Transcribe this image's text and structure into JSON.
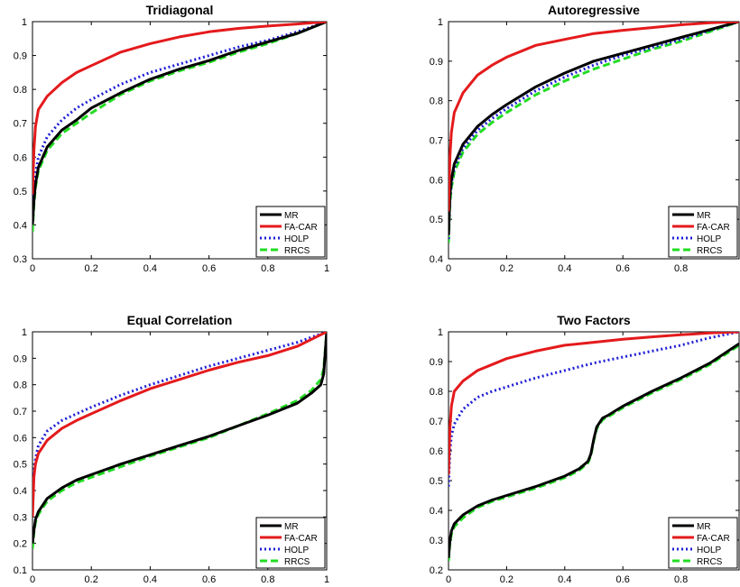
{
  "chart_data": [
    {
      "type": "line",
      "title": "Tridiagonal",
      "xlim": [
        0,
        1
      ],
      "ylim": [
        0.3,
        1
      ],
      "xticks": [
        "0",
        "0.2",
        "0.4",
        "0.6",
        "0.8",
        "1"
      ],
      "yticks": [
        "0.3",
        "0.4",
        "0.5",
        "0.6",
        "0.7",
        "0.8",
        "0.9",
        "1"
      ],
      "legend": "bottom-right",
      "series": [
        {
          "name": "MR",
          "color": "#000000",
          "style": "solid",
          "x": [
            0,
            0.005,
            0.01,
            0.02,
            0.05,
            0.1,
            0.15,
            0.2,
            0.3,
            0.4,
            0.5,
            0.6,
            0.7,
            0.8,
            0.9,
            1.0
          ],
          "y": [
            0.4,
            0.47,
            0.52,
            0.57,
            0.63,
            0.68,
            0.71,
            0.745,
            0.79,
            0.83,
            0.86,
            0.885,
            0.915,
            0.94,
            0.965,
            1.0
          ]
        },
        {
          "name": "FA-CAR",
          "color": "#e41a1c",
          "style": "solid",
          "x": [
            0,
            0.005,
            0.01,
            0.02,
            0.05,
            0.1,
            0.15,
            0.2,
            0.3,
            0.4,
            0.5,
            0.6,
            0.7,
            0.8,
            0.9,
            1.0
          ],
          "y": [
            0.49,
            0.62,
            0.69,
            0.74,
            0.78,
            0.82,
            0.85,
            0.87,
            0.91,
            0.935,
            0.955,
            0.97,
            0.98,
            0.987,
            0.993,
            1.0
          ]
        },
        {
          "name": "HOLP",
          "color": "#1f1fd6",
          "style": "dotted",
          "x": [
            0,
            0.005,
            0.01,
            0.02,
            0.05,
            0.1,
            0.15,
            0.2,
            0.3,
            0.4,
            0.5,
            0.6,
            0.7,
            0.8,
            0.9,
            1.0
          ],
          "y": [
            0.42,
            0.5,
            0.55,
            0.6,
            0.66,
            0.71,
            0.745,
            0.77,
            0.815,
            0.85,
            0.875,
            0.9,
            0.925,
            0.945,
            0.97,
            1.0
          ]
        },
        {
          "name": "RRCS",
          "color": "#22dd22",
          "style": "dashed",
          "x": [
            0,
            0.005,
            0.01,
            0.02,
            0.05,
            0.1,
            0.15,
            0.2,
            0.3,
            0.4,
            0.5,
            0.6,
            0.7,
            0.8,
            0.9,
            1.0
          ],
          "y": [
            0.38,
            0.46,
            0.51,
            0.56,
            0.62,
            0.67,
            0.7,
            0.73,
            0.785,
            0.825,
            0.855,
            0.88,
            0.91,
            0.935,
            0.965,
            1.0
          ]
        }
      ]
    },
    {
      "type": "line",
      "title": "Autoregressive",
      "xlim": [
        0,
        1
      ],
      "ylim": [
        0.4,
        1
      ],
      "xticks": [
        "0",
        "0.2",
        "0.4",
        "0.6",
        "0.8"
      ],
      "xtickvals": [
        0,
        0.2,
        0.4,
        0.6,
        0.8
      ],
      "yticks": [
        "0.4",
        "0.5",
        "0.6",
        "0.7",
        "0.8",
        "0.9",
        "1"
      ],
      "legend": "bottom-right",
      "series": [
        {
          "name": "MR",
          "color": "#000000",
          "style": "solid",
          "x": [
            0,
            0.005,
            0.01,
            0.02,
            0.05,
            0.1,
            0.15,
            0.2,
            0.3,
            0.4,
            0.5,
            0.6,
            0.7,
            0.8,
            0.9,
            1.0
          ],
          "y": [
            0.46,
            0.56,
            0.6,
            0.64,
            0.69,
            0.735,
            0.765,
            0.79,
            0.835,
            0.87,
            0.9,
            0.92,
            0.94,
            0.96,
            0.98,
            1.0
          ]
        },
        {
          "name": "FA-CAR",
          "color": "#e41a1c",
          "style": "solid",
          "x": [
            0,
            0.005,
            0.01,
            0.02,
            0.05,
            0.1,
            0.15,
            0.2,
            0.3,
            0.4,
            0.5,
            0.6,
            0.7,
            0.8,
            0.9,
            1.0
          ],
          "y": [
            0.52,
            0.66,
            0.72,
            0.77,
            0.82,
            0.865,
            0.89,
            0.91,
            0.94,
            0.955,
            0.97,
            0.978,
            0.985,
            0.992,
            0.997,
            1.0
          ]
        },
        {
          "name": "HOLP",
          "color": "#1f1fd6",
          "style": "dotted",
          "x": [
            0,
            0.005,
            0.01,
            0.02,
            0.05,
            0.1,
            0.15,
            0.2,
            0.3,
            0.4,
            0.5,
            0.6,
            0.7,
            0.8,
            0.9,
            1.0
          ],
          "y": [
            0.45,
            0.55,
            0.59,
            0.63,
            0.68,
            0.725,
            0.755,
            0.78,
            0.825,
            0.86,
            0.89,
            0.915,
            0.935,
            0.955,
            0.978,
            1.0
          ]
        },
        {
          "name": "RRCS",
          "color": "#22dd22",
          "style": "dashed",
          "x": [
            0,
            0.005,
            0.01,
            0.02,
            0.05,
            0.1,
            0.15,
            0.2,
            0.3,
            0.4,
            0.5,
            0.6,
            0.7,
            0.8,
            0.9,
            1.0
          ],
          "y": [
            0.44,
            0.54,
            0.58,
            0.62,
            0.67,
            0.715,
            0.745,
            0.77,
            0.815,
            0.85,
            0.88,
            0.905,
            0.93,
            0.95,
            0.975,
            1.0
          ]
        }
      ]
    },
    {
      "type": "line",
      "title": "Equal Correlation",
      "xlim": [
        0,
        1
      ],
      "ylim": [
        0.1,
        1
      ],
      "xticks": [
        "0",
        "0.2",
        "0.4",
        "0.6",
        "0.8",
        "1"
      ],
      "yticks": [
        "0.1",
        "0.2",
        "0.3",
        "0.4",
        "0.5",
        "0.6",
        "0.7",
        "0.8",
        "0.9",
        "1"
      ],
      "legend": "bottom-right",
      "series": [
        {
          "name": "MR",
          "color": "#000000",
          "style": "solid",
          "x": [
            0,
            0.005,
            0.01,
            0.02,
            0.05,
            0.1,
            0.15,
            0.2,
            0.3,
            0.4,
            0.5,
            0.6,
            0.7,
            0.8,
            0.9,
            0.95,
            0.98,
            0.99,
            1.0
          ],
          "y": [
            0.2,
            0.25,
            0.29,
            0.32,
            0.37,
            0.41,
            0.44,
            0.46,
            0.5,
            0.535,
            0.57,
            0.605,
            0.645,
            0.685,
            0.73,
            0.77,
            0.8,
            0.84,
            1.0
          ]
        },
        {
          "name": "FA-CAR",
          "color": "#e41a1c",
          "style": "solid",
          "x": [
            0,
            0.005,
            0.01,
            0.02,
            0.05,
            0.1,
            0.15,
            0.2,
            0.3,
            0.4,
            0.5,
            0.6,
            0.7,
            0.8,
            0.9,
            1.0
          ],
          "y": [
            0.3,
            0.45,
            0.5,
            0.54,
            0.59,
            0.635,
            0.665,
            0.69,
            0.74,
            0.785,
            0.82,
            0.855,
            0.885,
            0.91,
            0.945,
            1.0
          ]
        },
        {
          "name": "HOLP",
          "color": "#1f1fd6",
          "style": "dotted",
          "x": [
            0,
            0.005,
            0.01,
            0.02,
            0.05,
            0.1,
            0.15,
            0.2,
            0.3,
            0.4,
            0.5,
            0.6,
            0.7,
            0.8,
            0.9,
            1.0
          ],
          "y": [
            0.36,
            0.47,
            0.52,
            0.57,
            0.625,
            0.665,
            0.69,
            0.715,
            0.76,
            0.8,
            0.835,
            0.87,
            0.9,
            0.93,
            0.96,
            1.0
          ]
        },
        {
          "name": "RRCS",
          "color": "#22dd22",
          "style": "dashed",
          "x": [
            0,
            0.005,
            0.01,
            0.02,
            0.05,
            0.1,
            0.15,
            0.2,
            0.3,
            0.4,
            0.5,
            0.6,
            0.7,
            0.8,
            0.9,
            0.95,
            0.98,
            0.99,
            1.0
          ],
          "y": [
            0.18,
            0.24,
            0.28,
            0.31,
            0.36,
            0.4,
            0.43,
            0.45,
            0.49,
            0.53,
            0.565,
            0.6,
            0.645,
            0.69,
            0.74,
            0.78,
            0.82,
            0.86,
            1.0
          ]
        }
      ]
    },
    {
      "type": "line",
      "title": "Two Factors",
      "xlim": [
        0,
        1
      ],
      "ylim": [
        0.2,
        1
      ],
      "xticks": [
        "0",
        "0.2",
        "0.4",
        "0.6",
        "0.8"
      ],
      "xtickvals": [
        0,
        0.2,
        0.4,
        0.6,
        0.8
      ],
      "yticks": [
        "0.2",
        "0.3",
        "0.4",
        "0.5",
        "0.6",
        "0.7",
        "0.8",
        "0.9",
        "1"
      ],
      "legend": "bottom-right",
      "series": [
        {
          "name": "MR",
          "color": "#000000",
          "style": "solid",
          "x": [
            0,
            0.005,
            0.01,
            0.02,
            0.05,
            0.1,
            0.15,
            0.2,
            0.3,
            0.4,
            0.45,
            0.48,
            0.49,
            0.5,
            0.51,
            0.53,
            0.55,
            0.6,
            0.7,
            0.8,
            0.9,
            1.0
          ],
          "y": [
            0.24,
            0.3,
            0.33,
            0.355,
            0.385,
            0.415,
            0.435,
            0.45,
            0.48,
            0.515,
            0.54,
            0.565,
            0.59,
            0.64,
            0.68,
            0.71,
            0.72,
            0.75,
            0.8,
            0.845,
            0.895,
            0.96
          ]
        },
        {
          "name": "FA-CAR",
          "color": "#e41a1c",
          "style": "solid",
          "x": [
            0,
            0.005,
            0.01,
            0.02,
            0.05,
            0.1,
            0.15,
            0.2,
            0.3,
            0.4,
            0.5,
            0.6,
            0.7,
            0.8,
            0.9,
            1.0
          ],
          "y": [
            0.52,
            0.68,
            0.75,
            0.8,
            0.835,
            0.87,
            0.89,
            0.91,
            0.935,
            0.955,
            0.965,
            0.975,
            0.983,
            0.99,
            0.996,
            1.0
          ]
        },
        {
          "name": "HOLP",
          "color": "#1f1fd6",
          "style": "dotted",
          "x": [
            0,
            0.005,
            0.01,
            0.02,
            0.05,
            0.1,
            0.15,
            0.2,
            0.3,
            0.4,
            0.5,
            0.6,
            0.7,
            0.8,
            0.9,
            1.0
          ],
          "y": [
            0.48,
            0.6,
            0.65,
            0.69,
            0.74,
            0.78,
            0.8,
            0.815,
            0.845,
            0.87,
            0.895,
            0.915,
            0.935,
            0.955,
            0.98,
            1.0
          ]
        },
        {
          "name": "RRCS",
          "color": "#22dd22",
          "style": "dashed",
          "x": [
            0,
            0.005,
            0.01,
            0.02,
            0.05,
            0.1,
            0.15,
            0.2,
            0.3,
            0.4,
            0.45,
            0.48,
            0.49,
            0.5,
            0.51,
            0.53,
            0.55,
            0.6,
            0.7,
            0.8,
            0.9,
            1.0
          ],
          "y": [
            0.23,
            0.29,
            0.32,
            0.345,
            0.375,
            0.41,
            0.43,
            0.445,
            0.475,
            0.51,
            0.535,
            0.56,
            0.585,
            0.635,
            0.675,
            0.705,
            0.715,
            0.745,
            0.795,
            0.84,
            0.89,
            0.955
          ]
        }
      ]
    }
  ]
}
